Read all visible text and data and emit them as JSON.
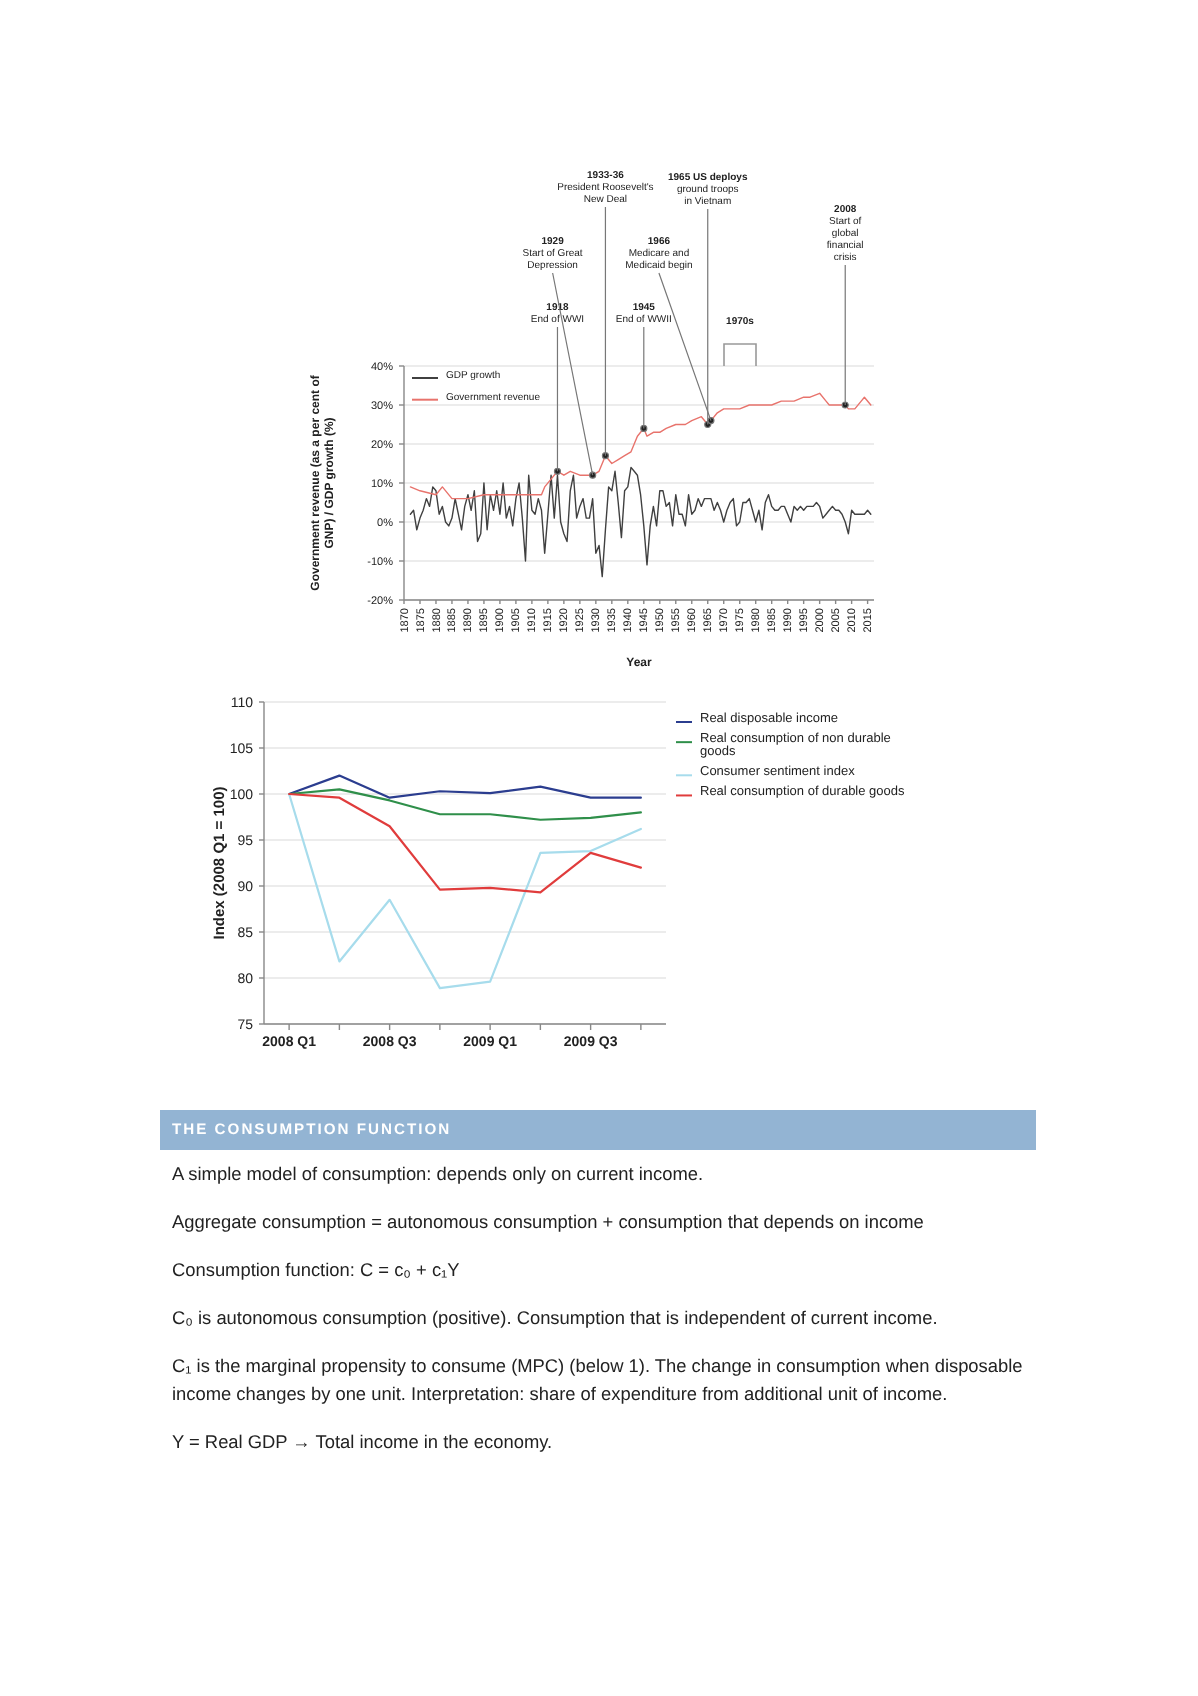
{
  "chart_data": [
    {
      "type": "line",
      "xlabel": "Year",
      "ylabel": "Government revenue (as a per cent of GNP) / GDP growth (%)",
      "xlim": [
        1870,
        2017
      ],
      "xticks": [
        1870,
        1875,
        1880,
        1885,
        1890,
        1895,
        1900,
        1905,
        1910,
        1915,
        1920,
        1925,
        1930,
        1935,
        1940,
        1945,
        1950,
        1955,
        1960,
        1965,
        1970,
        1975,
        1980,
        1985,
        1990,
        1995,
        2000,
        2005,
        2010,
        2015
      ],
      "ylim": [
        -20,
        40
      ],
      "yticks": [
        {
          "value": -20,
          "label": "-20%"
        },
        {
          "value": -10,
          "label": "-10%"
        },
        {
          "value": 0,
          "label": "0%"
        },
        {
          "value": 10,
          "label": "10%"
        },
        {
          "value": 20,
          "label": "20%"
        },
        {
          "value": 30,
          "label": "30%"
        },
        {
          "value": 40,
          "label": "40%"
        }
      ],
      "grid": "y",
      "legend": "top left",
      "series": [
        {
          "name": "GDP growth",
          "color": "#404040",
          "x": [
            1872,
            1873,
            1874,
            1875,
            1876,
            1877,
            1878,
            1879,
            1880,
            1881,
            1882,
            1883,
            1884,
            1885,
            1886,
            1887,
            1888,
            1889,
            1890,
            1891,
            1892,
            1893,
            1894,
            1895,
            1896,
            1897,
            1898,
            1899,
            1900,
            1901,
            1902,
            1903,
            1904,
            1905,
            1906,
            1907,
            1908,
            1909,
            1910,
            1911,
            1912,
            1913,
            1914,
            1915,
            1916,
            1917,
            1918,
            1919,
            1920,
            1921,
            1922,
            1923,
            1924,
            1925,
            1926,
            1927,
            1928,
            1929,
            1930,
            1931,
            1932,
            1933,
            1934,
            1935,
            1936,
            1937,
            1938,
            1939,
            1940,
            1941,
            1942,
            1943,
            1944,
            1945,
            1946,
            1947,
            1948,
            1949,
            1950,
            1951,
            1952,
            1953,
            1954,
            1955,
            1956,
            1957,
            1958,
            1959,
            1960,
            1961,
            1962,
            1963,
            1964,
            1965,
            1966,
            1967,
            1968,
            1969,
            1970,
            1971,
            1972,
            1973,
            1974,
            1975,
            1976,
            1977,
            1978,
            1979,
            1980,
            1981,
            1982,
            1983,
            1984,
            1985,
            1986,
            1987,
            1988,
            1989,
            1990,
            1991,
            1992,
            1993,
            1994,
            1995,
            1996,
            1997,
            1998,
            1999,
            2000,
            2001,
            2002,
            2003,
            2004,
            2005,
            2006,
            2007,
            2008,
            2009,
            2010,
            2011,
            2012,
            2013,
            2014,
            2015,
            2016
          ],
          "values": [
            2,
            3,
            -2,
            1,
            3,
            6,
            4,
            9,
            8,
            2,
            4,
            0,
            -1,
            1,
            6,
            2,
            -2,
            4,
            7,
            3,
            8,
            -5,
            -3,
            10,
            -2,
            7,
            3,
            8,
            2,
            10,
            1,
            4,
            -1,
            6,
            10,
            1,
            -10,
            12,
            3,
            2,
            6,
            3,
            -8,
            2,
            12,
            1,
            12,
            0,
            -3,
            -5,
            8,
            12,
            1,
            4,
            6,
            1,
            1,
            6,
            -8,
            -6,
            -14,
            -2,
            9,
            8,
            13,
            5,
            -4,
            8,
            9,
            14,
            13,
            12,
            7,
            -1,
            -11,
            -1,
            4,
            -1,
            8,
            8,
            4,
            5,
            -1,
            7,
            2,
            2,
            -1,
            7,
            2,
            3,
            6,
            4,
            6,
            6,
            6,
            3,
            5,
            3,
            0,
            3,
            5,
            6,
            -1,
            0,
            5,
            5,
            6,
            3,
            0,
            3,
            -2,
            5,
            7,
            4,
            3,
            3,
            4,
            4,
            2,
            0,
            4,
            3,
            4,
            3,
            4,
            4,
            4,
            5,
            4,
            1,
            2,
            3,
            4,
            3,
            3,
            2,
            0,
            -3,
            3,
            2,
            2,
            2,
            2,
            3,
            2
          ]
        },
        {
          "name": "Government revenue",
          "color": "#e8736c",
          "x": [
            1872,
            1875,
            1880,
            1882,
            1885,
            1890,
            1895,
            1900,
            1905,
            1910,
            1913,
            1914,
            1916,
            1918,
            1920,
            1922,
            1925,
            1927,
            1929,
            1931,
            1933,
            1935,
            1937,
            1939,
            1941,
            1943,
            1944,
            1945,
            1946,
            1948,
            1950,
            1952,
            1955,
            1958,
            1960,
            1963,
            1965,
            1966,
            1968,
            1970,
            1972,
            1975,
            1978,
            1980,
            1982,
            1985,
            1988,
            1990,
            1992,
            1995,
            1997,
            2000,
            2002,
            2003,
            2005,
            2006,
            2008,
            2009,
            2011,
            2013,
            2014,
            2016
          ],
          "values": [
            9,
            8,
            7,
            9,
            6,
            6,
            7,
            7,
            7,
            7,
            7,
            9,
            11,
            13,
            12,
            13,
            12,
            12,
            12,
            13,
            17,
            15,
            16,
            17,
            18,
            22,
            23,
            24,
            22,
            23,
            23,
            24,
            25,
            25,
            26,
            27,
            25,
            26,
            28,
            29,
            29,
            29,
            30,
            30,
            30,
            30,
            31,
            31,
            31,
            32,
            32,
            33,
            31,
            30,
            30,
            30,
            30,
            29,
            29,
            31,
            32,
            30
          ]
        }
      ],
      "annotations": [
        {
          "text": "1918\nEnd of WWI",
          "x": 1918,
          "y": 13
        },
        {
          "text": "1929\nStart of Great\nDepression",
          "x": 1929,
          "y": 12
        },
        {
          "text": "1933-36\nPresident Roosevelt's\nNew Deal",
          "x": 1933,
          "y": 17
        },
        {
          "text": "1945\nEnd of WWII",
          "x": 1945,
          "y": 24
        },
        {
          "text": "1965 US deploys\nground troops\nin Vietnam",
          "x": 1965,
          "y": 25
        },
        {
          "text": "1966\nMedicare and\nMedicaid begin",
          "x": 1966,
          "y": 26
        },
        {
          "text": "2008\nStart of\nglobal\nfinancial\ncrisis",
          "x": 2008,
          "y": 30
        },
        "1970s"
      ]
    },
    {
      "type": "line",
      "categories": [
        "2008 Q1",
        null,
        "2008 Q3",
        null,
        "2009 Q1",
        null,
        "2009 Q3",
        null
      ],
      "ylabel": "Index (2008 Q1 = 100)",
      "ylim": [
        75,
        110
      ],
      "yticks": [
        75,
        80,
        85,
        90,
        95,
        100,
        105,
        110
      ],
      "grid": "y",
      "legend": "right",
      "series": [
        {
          "name": "Real disposable income",
          "color": "#2b3d8f",
          "values": [
            100,
            102,
            99.6,
            100.3,
            100.1,
            100.8,
            99.6,
            99.6
          ]
        },
        {
          "name": "Real consumption of non durable goods",
          "color": "#2f8f4a",
          "values": [
            100,
            100.5,
            99.3,
            97.8,
            97.8,
            97.2,
            97.4,
            98
          ]
        },
        {
          "name": "Consumer sentiment index",
          "color": "#a7dcec",
          "values": [
            100,
            81.8,
            88.5,
            78.9,
            79.6,
            93.6,
            93.8,
            96.2
          ]
        },
        {
          "name": "Real consumption of durable goods",
          "color": "#e03c3c",
          "values": [
            100,
            99.6,
            96.5,
            89.6,
            89.8,
            89.3,
            93.6,
            92
          ]
        }
      ]
    },
    {
      "type": "other",
      "title": "THE CONSUMPTION FUNCTION",
      "annotations": [
        "A simple model of consumption: depends only on current income.",
        "Aggregate consumption = autonomous consumption + consumption that depends on income",
        "Consumption function: C = c₀ + c₁Y",
        "C₀ is autonomous consumption (positive). Consumption that is independent of current income.",
        "C₁ is the marginal propensity to consume (MPC) (below 1). The change in consumption when disposable income changes by one unit. Interpretation: share of expenditure from additional unit of income.",
        "Y = Real GDP → Total income in the economy."
      ]
    }
  ]
}
